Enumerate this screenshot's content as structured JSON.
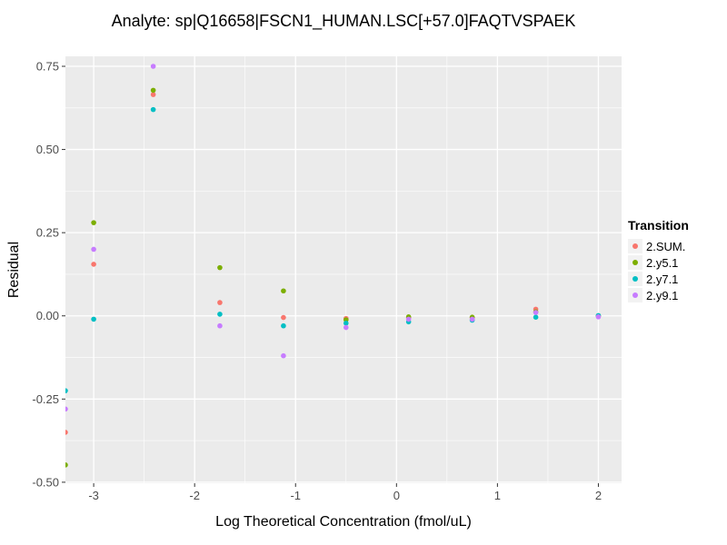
{
  "chart_data": {
    "type": "scatter",
    "title": "Analyte: sp|Q16658|FSCN1_HUMAN.LSC[+57.0]FAQTVSPAEK",
    "xlabel": "Log Theoretical Concentration (fmol/uL)",
    "ylabel": "Residual",
    "legend_title": "Transition",
    "legend_position": "right",
    "grid": true,
    "panel_bg": "#EBEBEB",
    "grid_color": "#FFFFFF",
    "x_domain": [
      -3.28,
      2.23
    ],
    "y_domain": [
      -0.503,
      0.78
    ],
    "x_ticks": [
      -3,
      -2,
      -1,
      0,
      1,
      2
    ],
    "x_tick_labels": [
      "-3",
      "-2",
      "-1",
      "0",
      "1",
      "2"
    ],
    "y_ticks": [
      -0.5,
      -0.25,
      0,
      0.25,
      0.5,
      0.75
    ],
    "y_tick_labels": [
      "-0.50",
      "-0.25",
      "0.00",
      "0.25",
      "0.50",
      "0.75"
    ],
    "x_minor": [
      -2.5,
      -1.5,
      -0.5,
      0.5,
      1.5
    ],
    "y_minor": [
      -0.375,
      -0.125,
      0.125,
      0.375,
      0.625
    ],
    "series": [
      {
        "name": "2.SUM.",
        "color": "#F8766D",
        "points": [
          [
            -3.28,
            -0.35
          ],
          [
            -3,
            0.155
          ],
          [
            -2.41,
            0.665
          ],
          [
            -1.75,
            0.04
          ],
          [
            -1.12,
            -0.005
          ],
          [
            -0.5,
            -0.008
          ],
          [
            0.12,
            -0.005
          ],
          [
            0.75,
            -0.006
          ],
          [
            1.38,
            0.02
          ],
          [
            2,
            0
          ]
        ]
      },
      {
        "name": "2.y5.1",
        "color": "#7CAE00",
        "points": [
          [
            -3.28,
            -0.448
          ],
          [
            -3,
            0.28
          ],
          [
            -2.41,
            0.678
          ],
          [
            -1.75,
            0.145
          ],
          [
            -1.12,
            0.075
          ],
          [
            -0.5,
            -0.012
          ],
          [
            0.12,
            -0.003
          ],
          [
            0.75,
            -0.004
          ],
          [
            1.38,
            0.012
          ],
          [
            2,
            0
          ]
        ]
      },
      {
        "name": "2.y7.1",
        "color": "#00BFC4",
        "points": [
          [
            -3.28,
            -0.225
          ],
          [
            -3,
            -0.01
          ],
          [
            -2.41,
            0.62
          ],
          [
            -1.75,
            0.005
          ],
          [
            -1.12,
            -0.03
          ],
          [
            -0.5,
            -0.022
          ],
          [
            0.12,
            -0.018
          ],
          [
            0.75,
            -0.013
          ],
          [
            1.38,
            -0.004
          ],
          [
            2,
            0.001
          ]
        ]
      },
      {
        "name": "2.y9.1",
        "color": "#C77CFF",
        "points": [
          [
            -3.28,
            -0.28
          ],
          [
            -3,
            0.2
          ],
          [
            -2.41,
            0.75
          ],
          [
            -1.75,
            -0.03
          ],
          [
            -1.12,
            -0.12
          ],
          [
            -0.5,
            -0.035
          ],
          [
            0.12,
            -0.01
          ],
          [
            0.75,
            -0.01
          ],
          [
            1.38,
            0.01
          ],
          [
            2,
            -0.003
          ]
        ]
      }
    ]
  }
}
